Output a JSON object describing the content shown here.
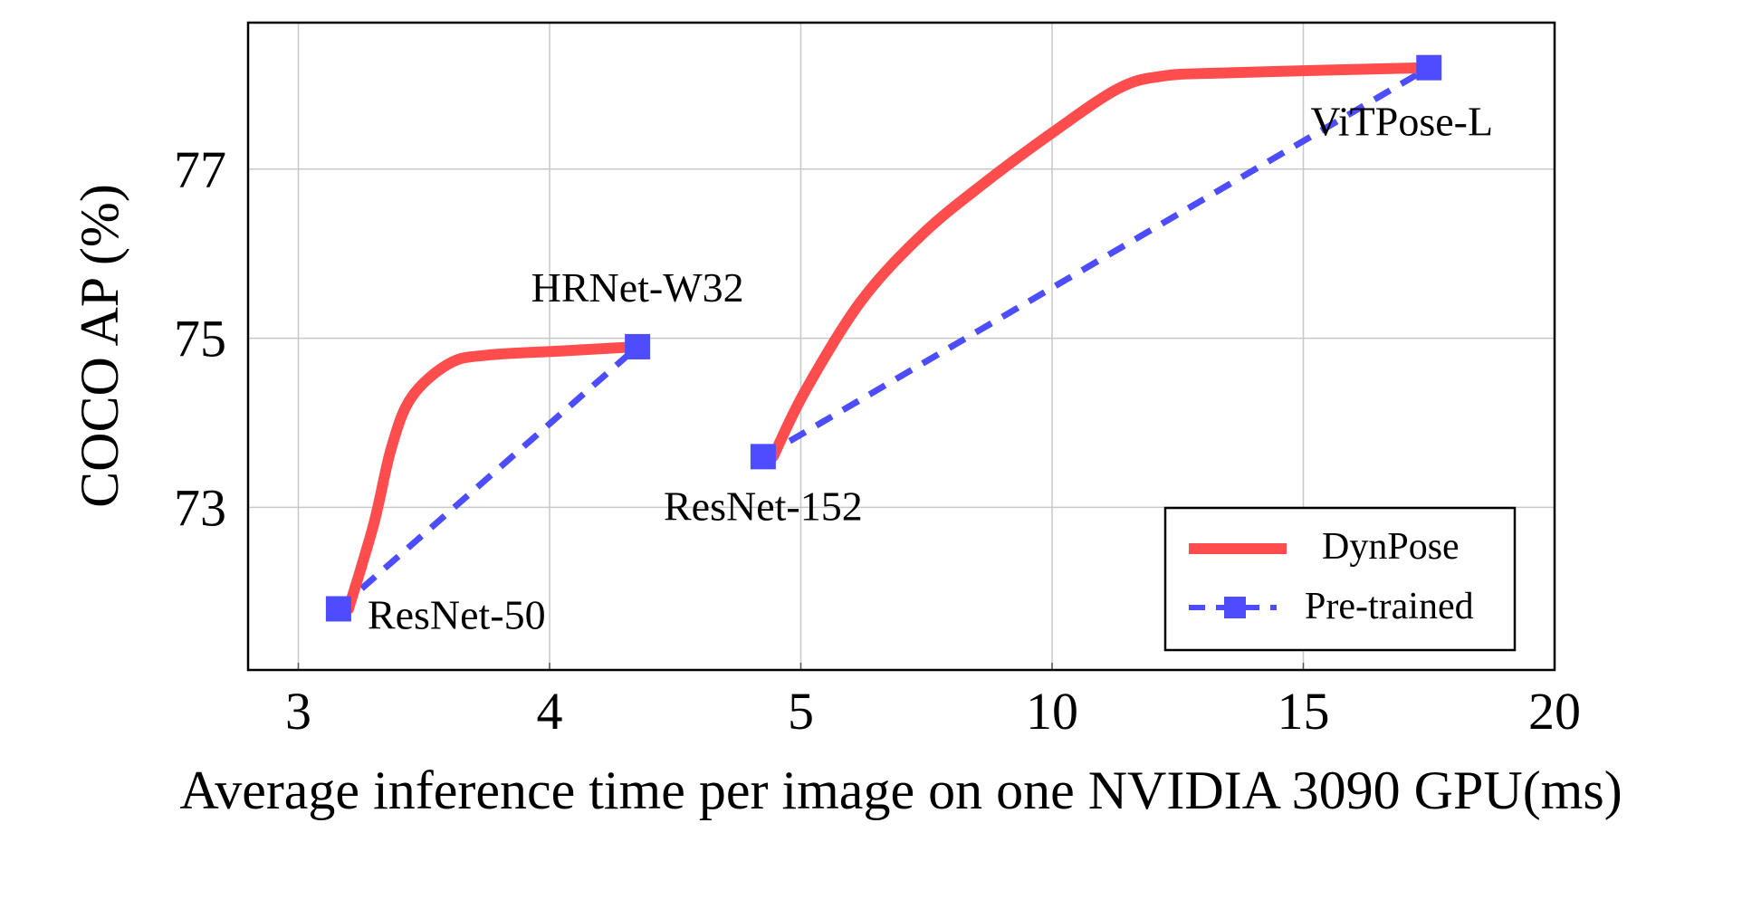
{
  "chart_data": {
    "type": "line",
    "title": "",
    "xlabel": "Average inference time per image on one NVIDIA 3090 GPU(ms)",
    "ylabel": "COCO AP (%)",
    "x_ticks": [
      3,
      4,
      5,
      10,
      15,
      20
    ],
    "x_tick_labels": [
      "3",
      "4",
      "5",
      "10",
      "15",
      "20"
    ],
    "x_scale": "piecewise (ticks evenly spaced)",
    "y_ticks": [
      73,
      75,
      77
    ],
    "y_tick_labels": [
      "73",
      "75",
      "77"
    ],
    "xlim": [
      2.8,
      20
    ],
    "ylim": [
      71.1,
      78.8
    ],
    "grid": true,
    "legend": "bottom-right",
    "series": [
      {
        "name": "DynPose",
        "color": "#ff4d4d",
        "style": "solid-thick",
        "segments": [
          [
            [
              3.2,
              71.8
            ],
            [
              3.3,
              72.8
            ],
            [
              3.37,
              73.7
            ],
            [
              3.45,
              74.3
            ],
            [
              3.6,
              74.7
            ],
            [
              3.75,
              74.8
            ],
            [
              4.05,
              74.85
            ],
            [
              4.35,
              74.9
            ]
          ],
          [
            [
              4.89,
              73.6
            ],
            [
              5.09,
              74.38
            ],
            [
              6.2,
              75.44
            ],
            [
              7.42,
              76.23
            ],
            [
              8.64,
              76.83
            ],
            [
              9.98,
              77.42
            ],
            [
              11.31,
              77.95
            ],
            [
              12.2,
              78.1
            ],
            [
              13.53,
              78.14
            ],
            [
              17.47,
              78.2
            ]
          ]
        ]
      },
      {
        "name": "Pre-trained",
        "color": "#4d4dff",
        "style": "dashed-square-markers",
        "segments": [
          [
            [
              3.16,
              71.8
            ],
            [
              4.35,
              74.9
            ]
          ],
          [
            [
              4.85,
              73.6
            ],
            [
              17.5,
              78.2
            ]
          ]
        ]
      }
    ],
    "annotations": [
      {
        "text": "ResNet-50",
        "x": 3.16,
        "y": 71.8
      },
      {
        "text": "HRNet-W32",
        "x": 4.35,
        "y": 74.9
      },
      {
        "text": "ResNet-152",
        "x": 4.85,
        "y": 73.6
      },
      {
        "text": "ViTPose-L",
        "x": 17.5,
        "y": 78.2
      }
    ]
  }
}
